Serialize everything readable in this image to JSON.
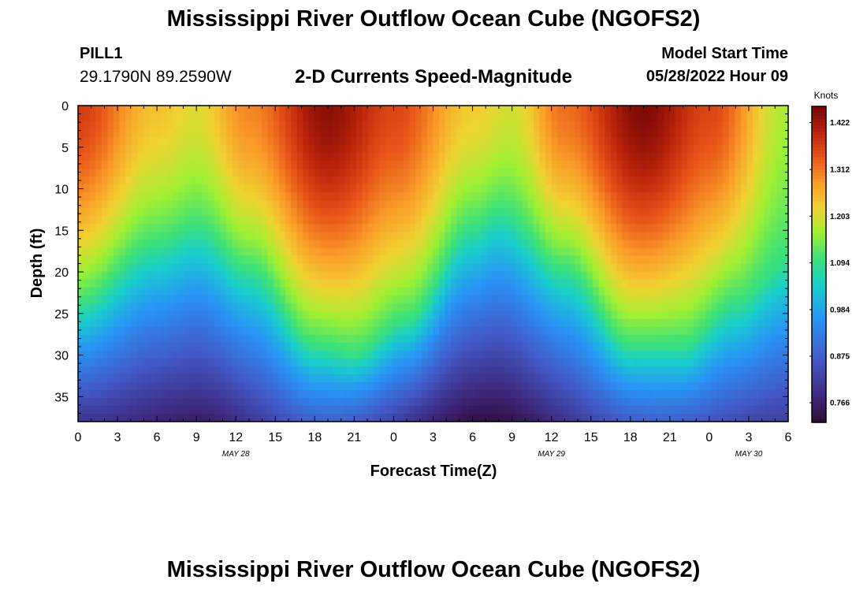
{
  "header": {
    "title": "Mississippi River Outflow Ocean Cube (NGOFS2)",
    "station": "PILL1",
    "coordinates": "29.1790N  89.2590W",
    "subtitle": "2-D Currents Speed-Magnitude",
    "model_start_label": "Model Start Time",
    "model_start_value": "05/28/2022 Hour 09"
  },
  "footer": {
    "title": "Mississippi River Outflow Ocean Cube (NGOFS2)"
  },
  "chart_data": {
    "type": "heatmap",
    "title": "2-D Currents Speed-Magnitude",
    "xlabel": "Forecast Time(Z)",
    "ylabel": "Depth (ft)",
    "x_start_hour": 0,
    "x_end_hour": 54,
    "x_tick_labels": [
      "0",
      "3",
      "6",
      "9",
      "12",
      "15",
      "18",
      "21",
      "0",
      "3",
      "6",
      "9",
      "12",
      "15",
      "18",
      "21",
      "0",
      "3",
      "6"
    ],
    "date_labels": [
      {
        "text": "MAY 28",
        "hour": 12
      },
      {
        "text": "MAY 29",
        "hour": 36
      },
      {
        "text": "MAY 30",
        "hour": 51
      }
    ],
    "ylim": [
      0,
      38
    ],
    "y_ticks": [
      0,
      5,
      10,
      15,
      20,
      25,
      30,
      35
    ],
    "colorbar": {
      "label": "Knots",
      "min": 0.72,
      "max": 1.46,
      "ticks": [
        "1.422",
        "1.312",
        "1.203",
        "1.094",
        "0.984",
        "0.875",
        "0.766"
      ]
    },
    "surface_speed": [
      {
        "hour": 0,
        "value": 1.37
      },
      {
        "hour": 6,
        "value": 1.24
      },
      {
        "hour": 9,
        "value": 1.21
      },
      {
        "hour": 13,
        "value": 1.3
      },
      {
        "hour": 19,
        "value": 1.44
      },
      {
        "hour": 24,
        "value": 1.36
      },
      {
        "hour": 30,
        "value": 1.23
      },
      {
        "hour": 33,
        "value": 1.2
      },
      {
        "hour": 37,
        "value": 1.32
      },
      {
        "hour": 43,
        "value": 1.45
      },
      {
        "hour": 48,
        "value": 1.36
      },
      {
        "hour": 54,
        "value": 1.17
      }
    ],
    "isoline_1094_depth_ft": [
      {
        "hour": 0,
        "value": 24
      },
      {
        "hour": 6,
        "value": 17
      },
      {
        "hour": 9,
        "value": 15
      },
      {
        "hour": 13,
        "value": 20
      },
      {
        "hour": 18,
        "value": 29
      },
      {
        "hour": 21,
        "value": 30
      },
      {
        "hour": 25,
        "value": 26
      },
      {
        "hour": 30,
        "value": 15
      },
      {
        "hour": 32,
        "value": 13
      },
      {
        "hour": 37,
        "value": 20
      },
      {
        "hour": 42,
        "value": 29
      },
      {
        "hour": 46,
        "value": 29
      },
      {
        "hour": 50,
        "value": 24
      },
      {
        "hour": 54,
        "value": 19
      }
    ],
    "bottom_speed": [
      {
        "hour": 0,
        "value": 0.8
      },
      {
        "hour": 9,
        "value": 0.76
      },
      {
        "hour": 19,
        "value": 0.88
      },
      {
        "hour": 31,
        "value": 0.73
      },
      {
        "hour": 44,
        "value": 0.88
      },
      {
        "hour": 54,
        "value": 0.82
      }
    ]
  }
}
